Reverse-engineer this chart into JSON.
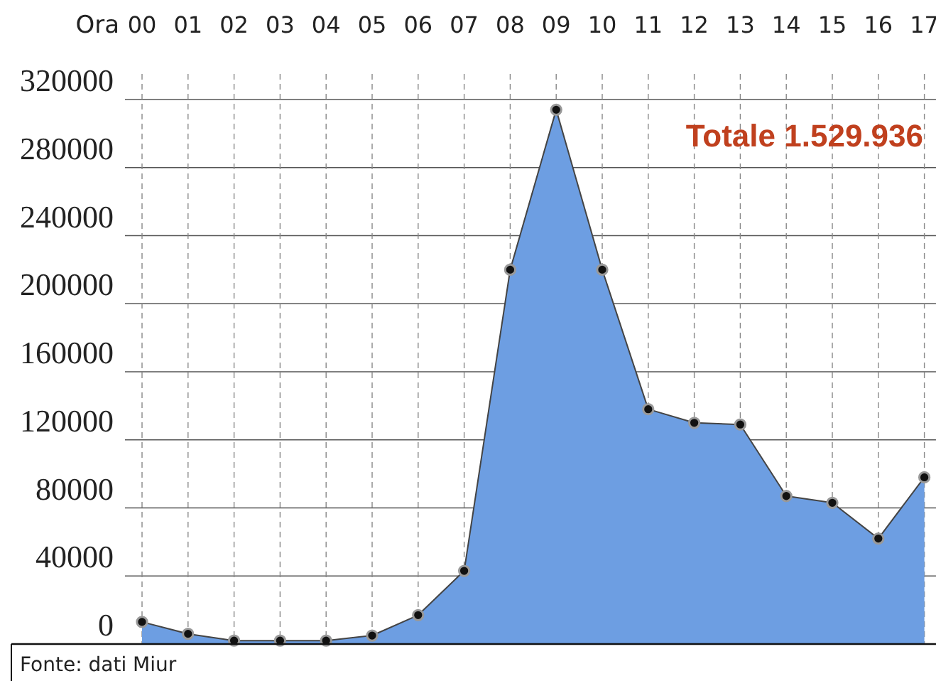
{
  "chart_data": {
    "type": "area",
    "xlabel": "Ora",
    "categories": [
      "00",
      "01",
      "02",
      "03",
      "04",
      "05",
      "06",
      "07",
      "08",
      "09",
      "10",
      "11",
      "12",
      "13",
      "14",
      "15",
      "16",
      "17"
    ],
    "series": [
      {
        "color": "#6d9ee2",
        "values": [
          13000,
          6000,
          2000,
          2000,
          2000,
          5000,
          17000,
          43000,
          220000,
          314000,
          220000,
          138000,
          130000,
          129000,
          87000,
          83000,
          62000,
          98000
        ]
      }
    ],
    "ylim": [
      0,
      320000
    ],
    "yticks": [
      0,
      40000,
      80000,
      120000,
      160000,
      200000,
      240000,
      280000,
      320000
    ],
    "grid": true,
    "marker": "circle",
    "annotations": [
      "Totale 1.529.936",
      "Fonte: dati Miur"
    ]
  }
}
